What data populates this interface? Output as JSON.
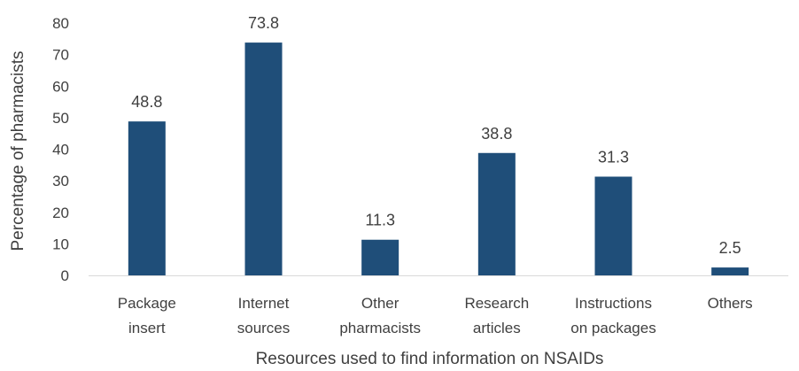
{
  "chart_data": {
    "type": "bar",
    "categories": [
      [
        "Package",
        "insert"
      ],
      [
        "Internet",
        "sources"
      ],
      [
        "Other",
        "pharmacists"
      ],
      [
        "Research",
        "articles"
      ],
      [
        "Instructions",
        "on packages"
      ],
      [
        "Others"
      ]
    ],
    "values": [
      48.8,
      73.8,
      11.3,
      38.8,
      31.3,
      2.5
    ],
    "data_labels": [
      "48.8",
      "73.8",
      "11.3",
      "38.8",
      "31.3",
      "2.5"
    ],
    "xlabel": "Resources used to find information on NSAIDs",
    "ylabel": "Percentage of  pharmacists",
    "ylim": [
      0,
      80
    ],
    "yticks": [
      0,
      10,
      20,
      30,
      40,
      50,
      60,
      70,
      80
    ],
    "grid": false,
    "legend": "none",
    "bar_color": "#1f4e79"
  }
}
